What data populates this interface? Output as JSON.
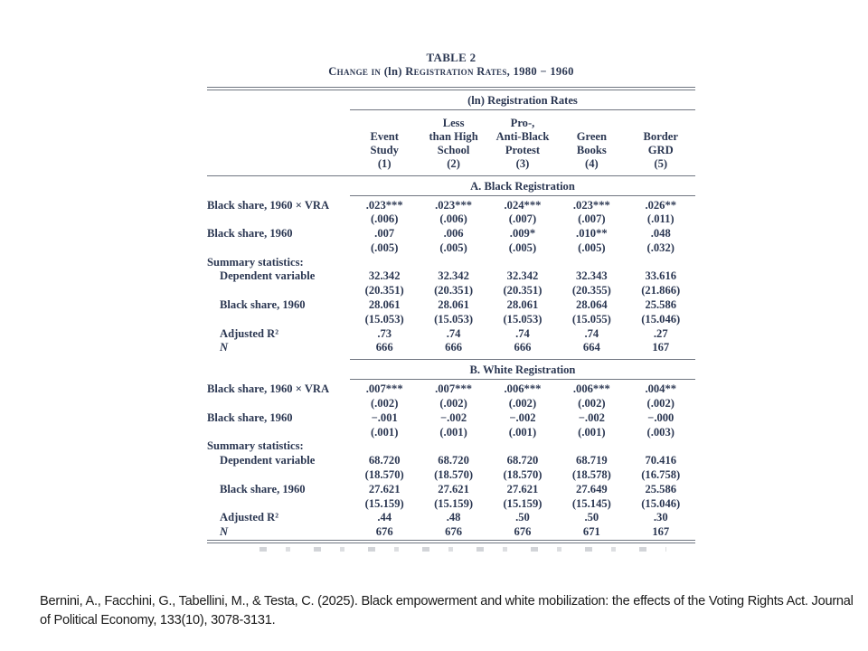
{
  "table": {
    "title": "TABLE 2",
    "subtitle_prefix": "Change in ",
    "subtitle_ln": "(ln)",
    "subtitle_suffix": " Registration Rates, 1980 − 1960",
    "spanner": "(ln) Registration Rates",
    "columns": [
      {
        "lines": [
          "Event",
          "Study"
        ],
        "number": "(1)"
      },
      {
        "lines": [
          "Less",
          "than High",
          "School"
        ],
        "number": "(2)"
      },
      {
        "lines": [
          "Pro-,",
          "Anti-Black",
          "Protest"
        ],
        "number": "(3)"
      },
      {
        "lines": [
          "Green",
          "Books"
        ],
        "number": "(4)"
      },
      {
        "lines": [
          "Border",
          "GRD"
        ],
        "number": "(5)"
      }
    ],
    "panels": [
      {
        "title": "A. Black Registration",
        "rows": [
          {
            "type": "coef",
            "label": "Black share, 1960 × VRA",
            "indent": false,
            "values": [
              ".023***",
              ".023***",
              ".024***",
              ".023***",
              ".026**"
            ],
            "se": [
              "(.006)",
              "(.006)",
              "(.007)",
              "(.007)",
              "(.011)"
            ]
          },
          {
            "type": "coef",
            "label": "Black share, 1960",
            "indent": false,
            "values": [
              ".007",
              ".006",
              ".009*",
              ".010**",
              ".048"
            ],
            "se": [
              "(.005)",
              "(.005)",
              "(.005)",
              "(.005)",
              "(.032)"
            ]
          },
          {
            "type": "section",
            "label": "Summary statistics:"
          },
          {
            "type": "coef",
            "label": "Dependent variable",
            "indent": true,
            "values": [
              "32.342",
              "32.342",
              "32.342",
              "32.343",
              "33.616"
            ],
            "se": [
              "(20.351)",
              "(20.351)",
              "(20.351)",
              "(20.355)",
              "(21.866)"
            ]
          },
          {
            "type": "coef",
            "label": "Black share, 1960",
            "indent": true,
            "values": [
              "28.061",
              "28.061",
              "28.061",
              "28.064",
              "25.586"
            ],
            "se": [
              "(15.053)",
              "(15.053)",
              "(15.053)",
              "(15.055)",
              "(15.046)"
            ]
          },
          {
            "type": "single",
            "label": "Adjusted R²",
            "indent": true,
            "values": [
              ".73",
              ".74",
              ".74",
              ".74",
              ".27"
            ]
          },
          {
            "type": "single",
            "label": "N",
            "indent": true,
            "italic": true,
            "values": [
              "666",
              "666",
              "666",
              "664",
              "167"
            ]
          }
        ]
      },
      {
        "title": "B. White Registration",
        "rows": [
          {
            "type": "coef",
            "label": "Black share, 1960 × VRA",
            "indent": false,
            "values": [
              ".007***",
              ".007***",
              ".006***",
              ".006***",
              ".004**"
            ],
            "se": [
              "(.002)",
              "(.002)",
              "(.002)",
              "(.002)",
              "(.002)"
            ]
          },
          {
            "type": "coef",
            "label": "Black share, 1960",
            "indent": false,
            "values": [
              "−.001",
              "−.002",
              "−.002",
              "−.002",
              "−.000"
            ],
            "se": [
              "(.001)",
              "(.001)",
              "(.001)",
              "(.001)",
              "(.003)"
            ]
          },
          {
            "type": "section",
            "label": "Summary statistics:"
          },
          {
            "type": "coef",
            "label": "Dependent variable",
            "indent": true,
            "values": [
              "68.720",
              "68.720",
              "68.720",
              "68.719",
              "70.416"
            ],
            "se": [
              "(18.570)",
              "(18.570)",
              "(18.570)",
              "(18.578)",
              "(16.758)"
            ]
          },
          {
            "type": "coef",
            "label": "Black share, 1960",
            "indent": true,
            "values": [
              "27.621",
              "27.621",
              "27.621",
              "27.649",
              "25.586"
            ],
            "se": [
              "(15.159)",
              "(15.159)",
              "(15.159)",
              "(15.145)",
              "(15.046)"
            ]
          },
          {
            "type": "single",
            "label": "Adjusted R²",
            "indent": true,
            "values": [
              ".44",
              ".48",
              ".50",
              ".50",
              ".30"
            ]
          },
          {
            "type": "single",
            "label": "N",
            "indent": true,
            "italic": true,
            "values": [
              "676",
              "676",
              "676",
              "671",
              "167"
            ]
          }
        ]
      }
    ]
  },
  "citation": "Bernini, A., Facchini, G., Tabellini, M., & Testa, C. (2025). Black empowerment and white mobilization: the effects of the Voting Rights Act. Journal of Political Economy, 133(10), 3078-3131."
}
